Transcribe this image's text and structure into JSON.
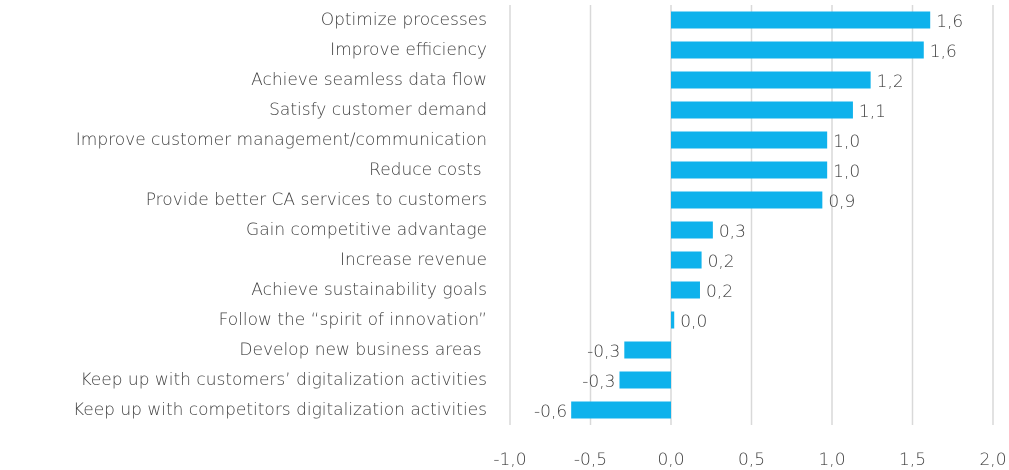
{
  "chart_data": {
    "type": "bar",
    "orientation": "horizontal",
    "categories": [
      "Optimize processes",
      "Improve efficiency",
      "Achieve seamless data flow",
      "Satisfy customer demand",
      "Improve customer management/communication",
      "Reduce costs ",
      "Provide better CA services to customers",
      "Gain competitive advantage",
      "Increase revenue",
      "Achieve sustainability goals",
      "Follow the “spirit of innovation”",
      "Develop new business areas ",
      "Keep up with customers’ digitalization activities",
      "Keep up with competitors digitalization activities"
    ],
    "values": [
      1.61,
      1.57,
      1.24,
      1.13,
      0.97,
      0.97,
      0.94,
      0.26,
      0.19,
      0.18,
      0.02,
      -0.29,
      -0.32,
      -0.62
    ],
    "value_labels": [
      "1,6",
      "1,6",
      "1,2",
      "1,1",
      "1,0",
      "1,0",
      "0,9",
      "0,3",
      "0,2",
      "0,2",
      "0,0",
      "-0,3",
      "-0,3",
      "-0,6"
    ],
    "color": "#0fb2ec",
    "xlim": [
      -1.0,
      2.0
    ],
    "xticks": [
      {
        "value": -1.0,
        "label": "-1,0"
      },
      {
        "value": -0.5,
        "label": "-0,5"
      },
      {
        "value": 0.0,
        "label": "0,0"
      },
      {
        "value": 0.5,
        "label": "0,5"
      },
      {
        "value": 1.0,
        "label": "1,0"
      },
      {
        "value": 1.5,
        "label": "1,5"
      },
      {
        "value": 2.0,
        "label": "2,0"
      }
    ],
    "grid": true
  }
}
